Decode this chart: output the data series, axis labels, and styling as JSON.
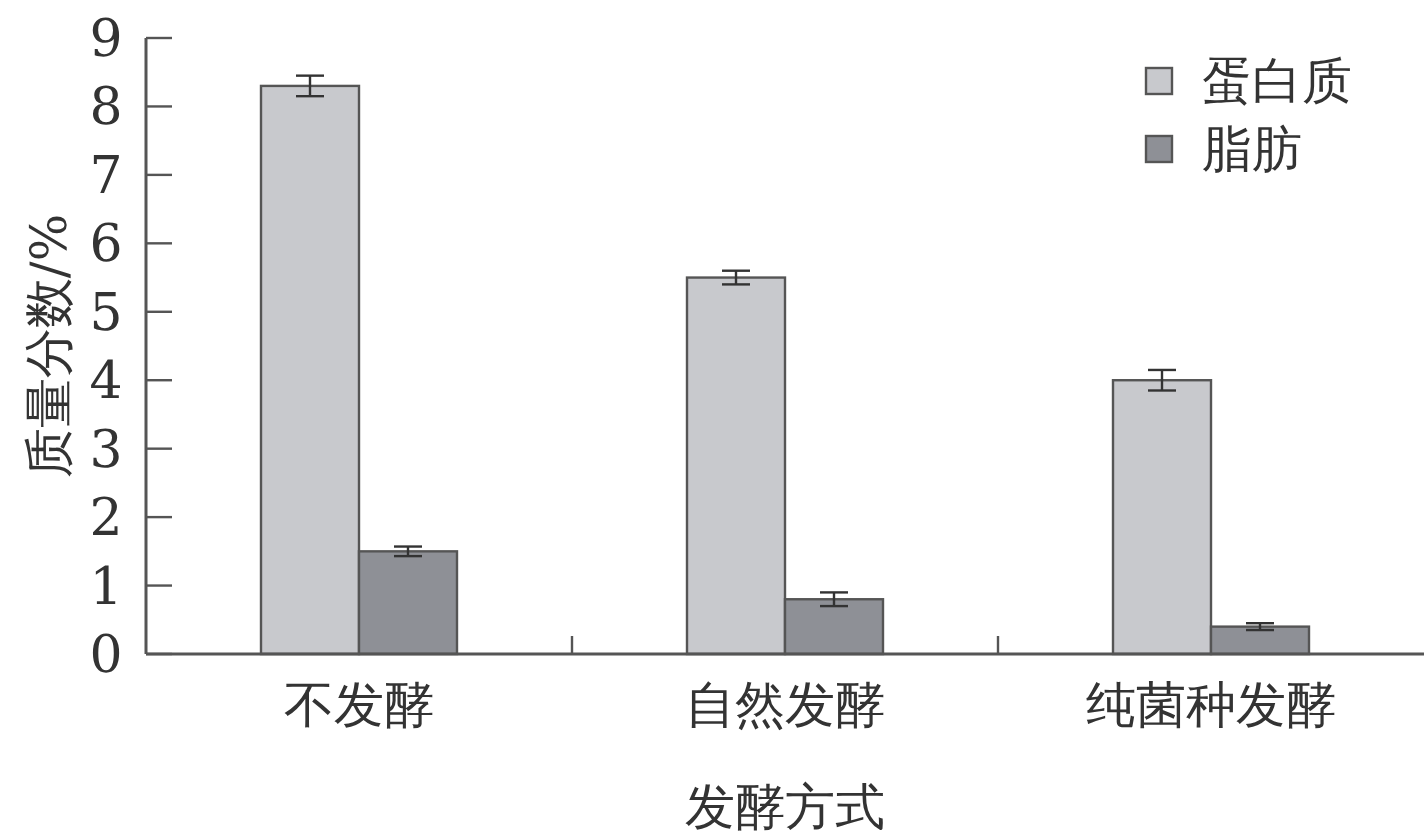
{
  "chart_data": {
    "type": "bar",
    "xlabel": "发酵方式",
    "ylabel": "质量分数/%",
    "categories": [
      "不发酵",
      "自然发酵",
      "纯菌种发酵"
    ],
    "series": [
      {
        "name": "蛋白质",
        "color": "#c8c9cd",
        "values": [
          8.3,
          5.5,
          4.0
        ],
        "errors": [
          0.15,
          0.1,
          0.15
        ]
      },
      {
        "name": "脂肪",
        "color": "#8e9096",
        "values": [
          1.5,
          0.8,
          0.4
        ],
        "errors": [
          0.07,
          0.1,
          0.05
        ]
      }
    ],
    "ylim": [
      0,
      9
    ],
    "yticks": [
      0,
      1,
      2,
      3,
      4,
      5,
      6,
      7,
      8,
      9
    ],
    "grid": false,
    "legend": "top right"
  }
}
